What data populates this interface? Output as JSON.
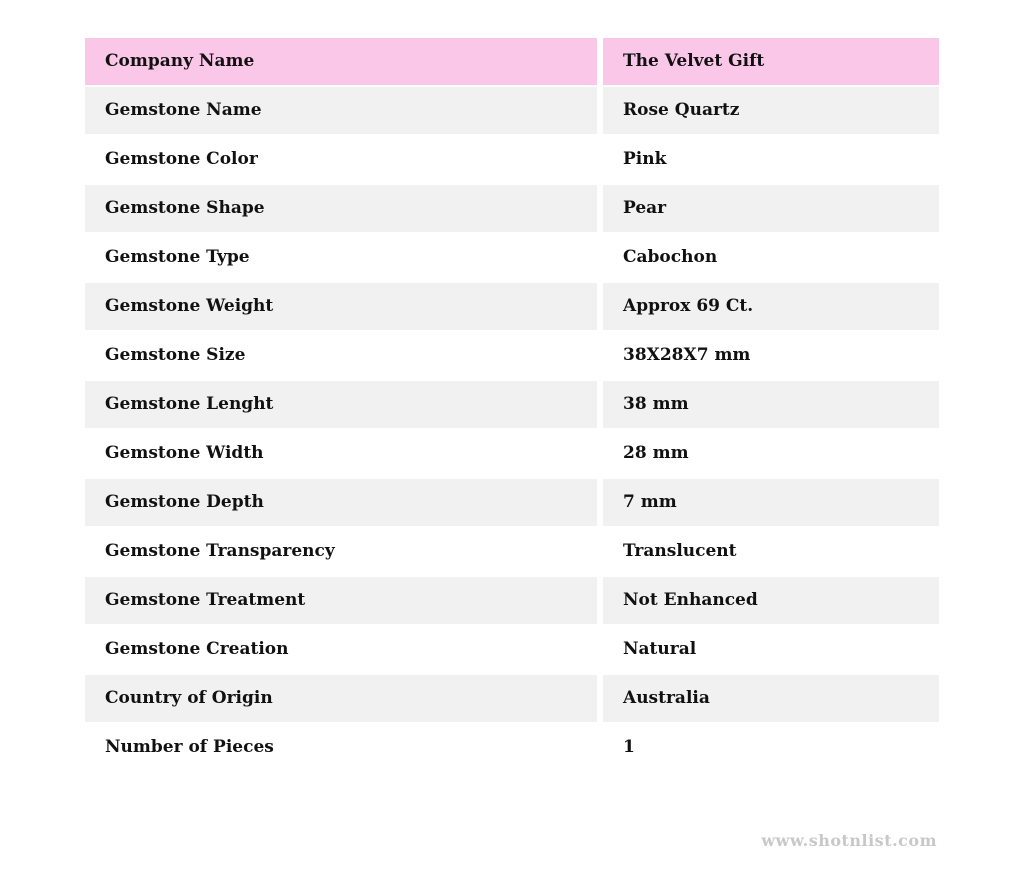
{
  "table": {
    "rows": [
      {
        "label": "Company Name",
        "value": "The Velvet Gift"
      },
      {
        "label": "Gemstone Name",
        "value": "Rose Quartz"
      },
      {
        "label": "Gemstone Color",
        "value": "Pink"
      },
      {
        "label": "Gemstone Shape",
        "value": "Pear"
      },
      {
        "label": "Gemstone Type",
        "value": "Cabochon"
      },
      {
        "label": "Gemstone Weight",
        "value": "Approx 69 Ct."
      },
      {
        "label": "Gemstone Size",
        "value": "38X28X7 mm"
      },
      {
        "label": "Gemstone Lenght",
        "value": "38 mm"
      },
      {
        "label": "Gemstone Width",
        "value": "28 mm"
      },
      {
        "label": "Gemstone Depth",
        "value": "7 mm"
      },
      {
        "label": "Gemstone Transparency",
        "value": "Translucent"
      },
      {
        "label": "Gemstone Treatment",
        "value": "Not Enhanced"
      },
      {
        "label": "Gemstone Creation",
        "value": "Natural"
      },
      {
        "label": "Country of Origin",
        "value": "Australia"
      },
      {
        "label": "Number of Pieces",
        "value": "1"
      }
    ]
  },
  "watermark": "www.shotnlist.com",
  "colors": {
    "header_bg": "#fac7e9",
    "stripe_bg": "#f1f1f1",
    "text": "#111111",
    "watermark": "#c8c8c8"
  }
}
